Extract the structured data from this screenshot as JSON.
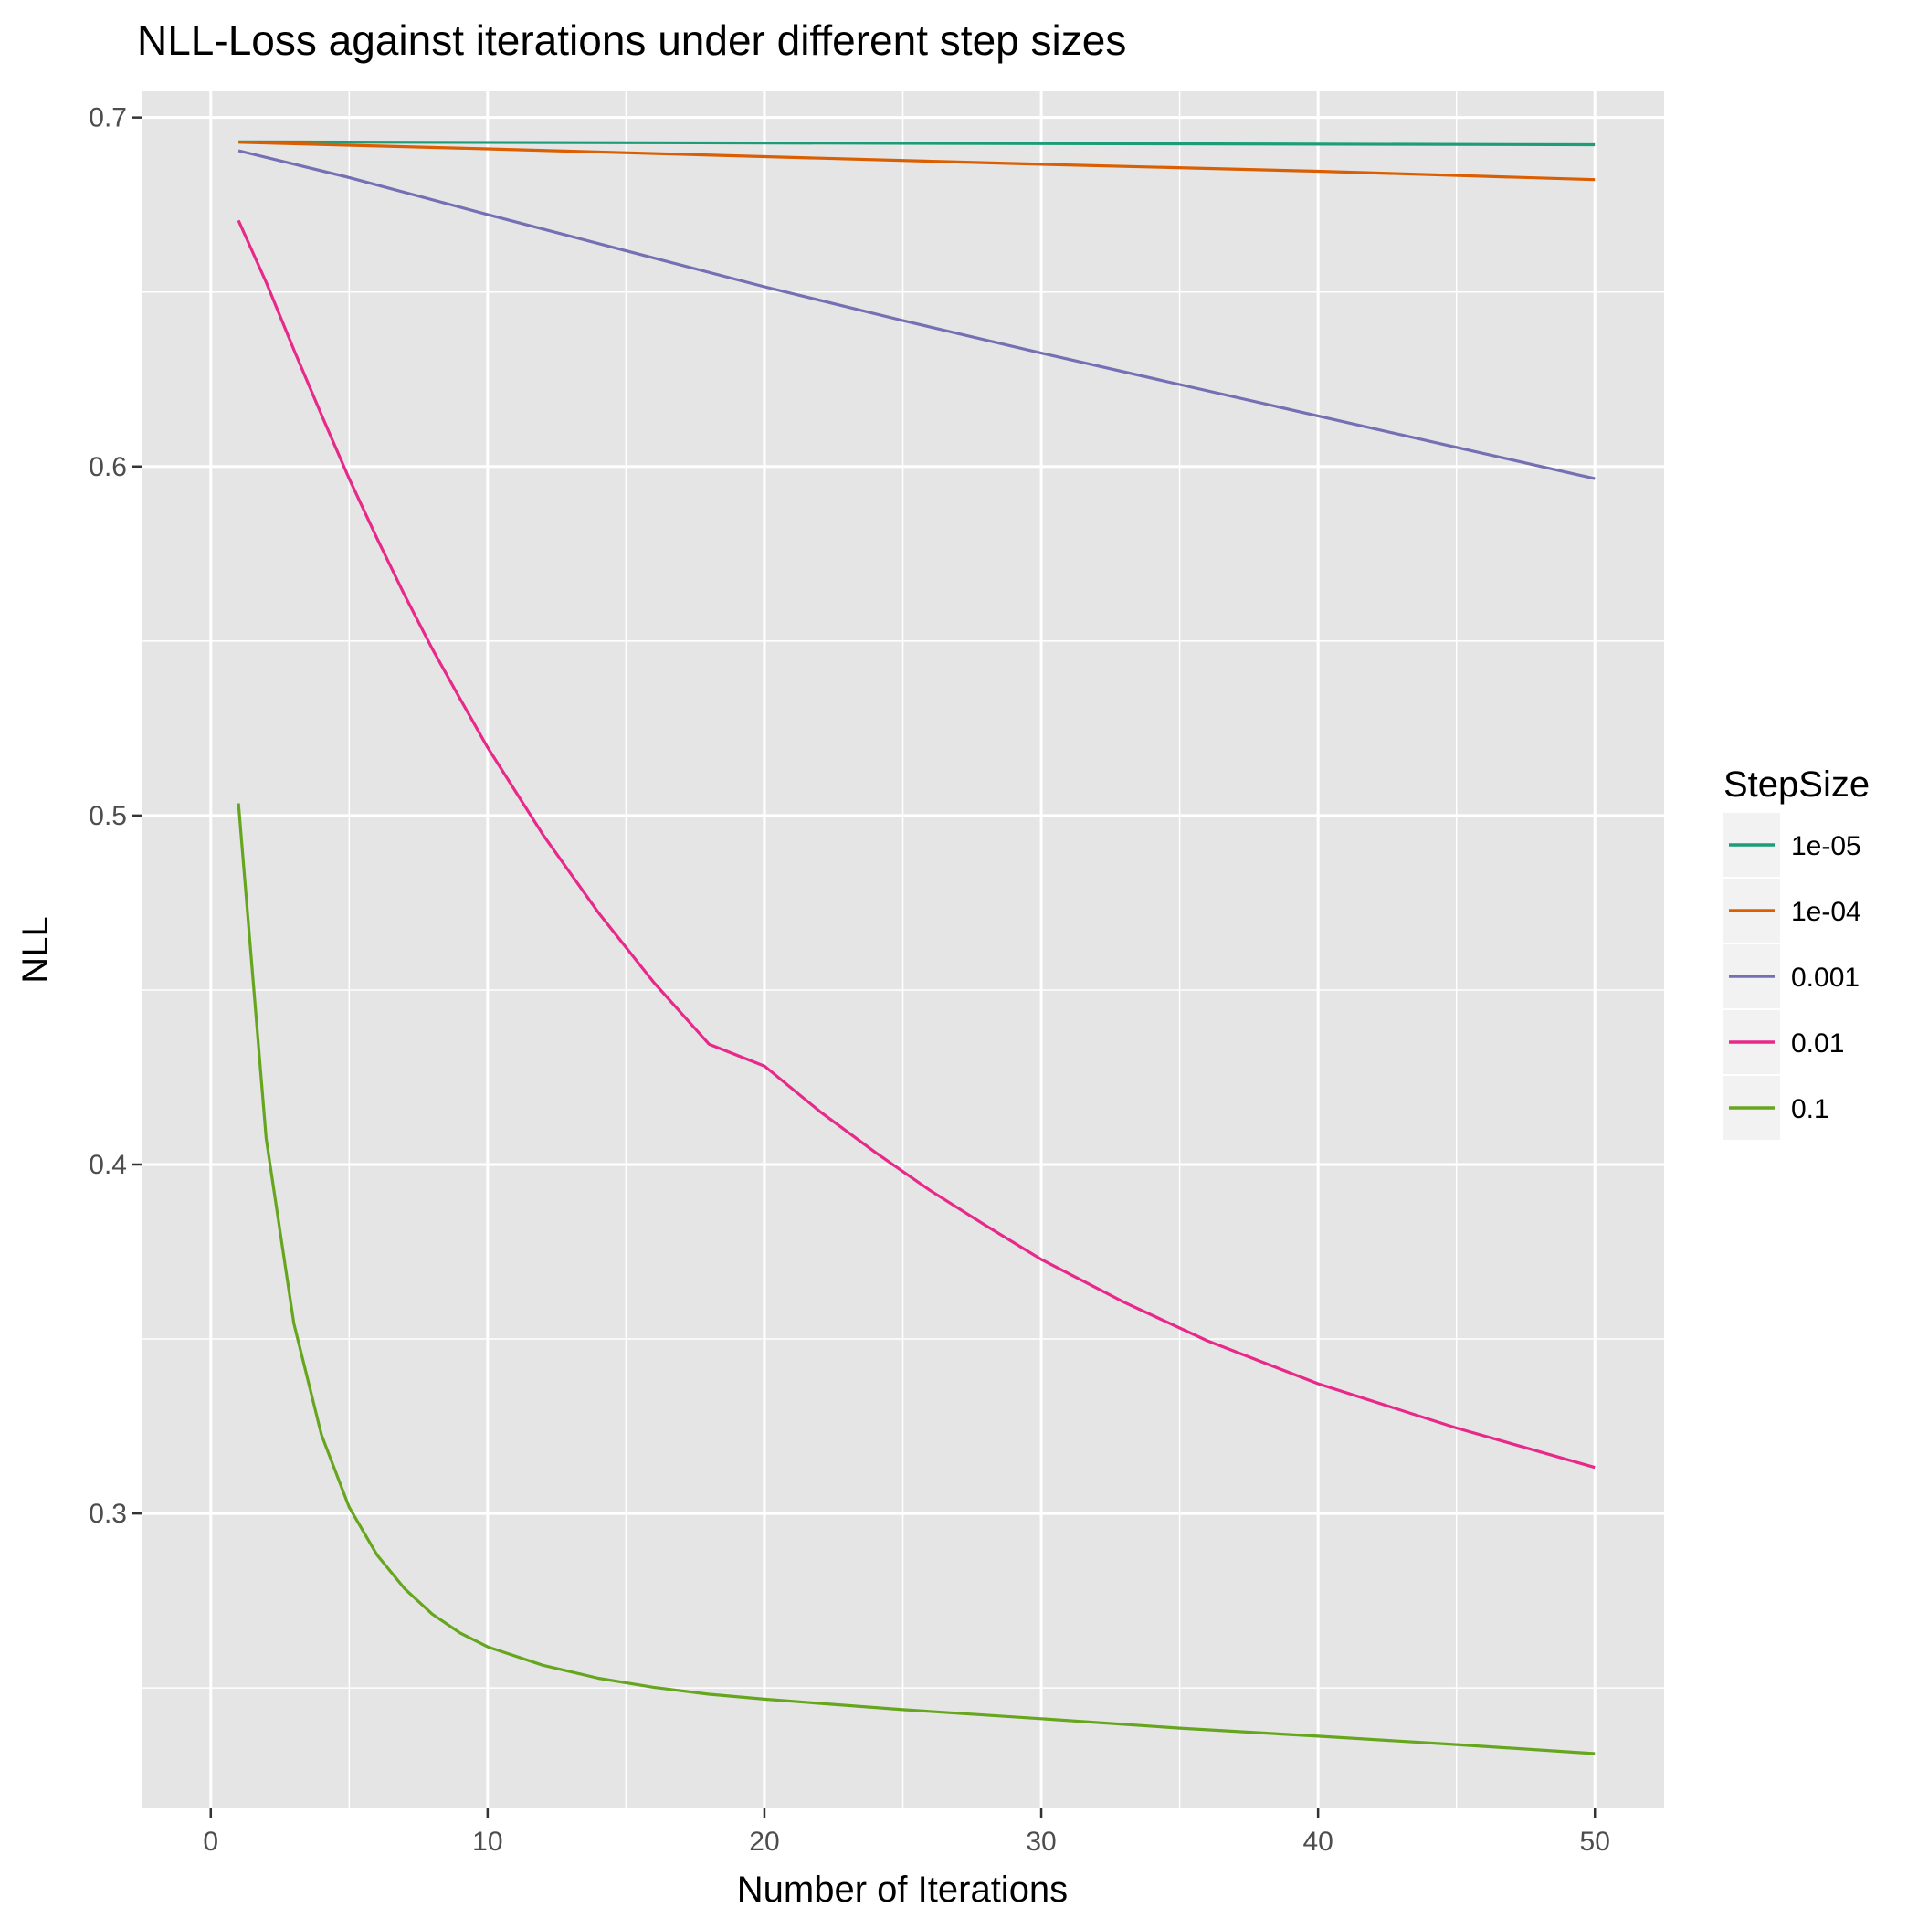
{
  "chart_data": {
    "type": "line",
    "title": "NLL-Loss against iterations under different step sizes",
    "xlabel": "Number of Iterations",
    "ylabel": "NLL",
    "xlim": [
      -2.5,
      52.5
    ],
    "ylim": [
      0.2155,
      0.7075
    ],
    "x_ticks": [
      0,
      10,
      20,
      30,
      40,
      50
    ],
    "y_ticks": [
      0.3,
      0.4,
      0.5,
      0.6,
      0.7
    ],
    "grid": true,
    "legend": {
      "title": "StepSize",
      "position": "right"
    },
    "colors": {
      "panel": "#e5e5e5",
      "grid": "#ffffff"
    },
    "series": [
      {
        "name": "1e-05",
        "color": "#1b9e77",
        "points": [
          [
            1,
            0.693
          ],
          [
            50,
            0.6922
          ]
        ]
      },
      {
        "name": "1e-04",
        "color": "#d95f02",
        "points": [
          [
            1,
            0.6929
          ],
          [
            10,
            0.691
          ],
          [
            20,
            0.6888
          ],
          [
            30,
            0.6866
          ],
          [
            40,
            0.6846
          ],
          [
            50,
            0.6822
          ]
        ]
      },
      {
        "name": "0.001",
        "color": "#7570b3",
        "points": [
          [
            1,
            0.6905
          ],
          [
            5,
            0.6828
          ],
          [
            10,
            0.6722
          ],
          [
            15,
            0.6618
          ],
          [
            20,
            0.6515
          ],
          [
            25,
            0.6418
          ],
          [
            30,
            0.6325
          ],
          [
            35,
            0.6235
          ],
          [
            40,
            0.6145
          ],
          [
            45,
            0.6055
          ],
          [
            50,
            0.5965
          ]
        ]
      },
      {
        "name": "0.01",
        "color": "#e7298a",
        "points": [
          [
            1,
            0.6705
          ],
          [
            2,
            0.6528
          ],
          [
            3,
            0.6335
          ],
          [
            4,
            0.6148
          ],
          [
            5,
            0.5965
          ],
          [
            6,
            0.5795
          ],
          [
            7,
            0.5632
          ],
          [
            8,
            0.5478
          ],
          [
            9,
            0.5335
          ],
          [
            10,
            0.5195
          ],
          [
            12,
            0.4945
          ],
          [
            14,
            0.4722
          ],
          [
            16,
            0.4522
          ],
          [
            18,
            0.4345
          ],
          [
            20,
            0.4282
          ],
          [
            22,
            0.4152
          ],
          [
            24,
            0.4035
          ],
          [
            26,
            0.3925
          ],
          [
            28,
            0.3825
          ],
          [
            30,
            0.3728
          ],
          [
            33,
            0.3605
          ],
          [
            36,
            0.3495
          ],
          [
            40,
            0.3372
          ],
          [
            45,
            0.3245
          ],
          [
            50,
            0.3132
          ]
        ]
      },
      {
        "name": "0.1",
        "color": "#66a61e",
        "points": [
          [
            1,
            0.5035
          ],
          [
            2,
            0.4075
          ],
          [
            3,
            0.3545
          ],
          [
            4,
            0.3225
          ],
          [
            5,
            0.3018
          ],
          [
            6,
            0.2882
          ],
          [
            7,
            0.2785
          ],
          [
            8,
            0.2712
          ],
          [
            9,
            0.2658
          ],
          [
            10,
            0.2618
          ],
          [
            12,
            0.2565
          ],
          [
            14,
            0.2528
          ],
          [
            16,
            0.2502
          ],
          [
            18,
            0.2482
          ],
          [
            20,
            0.2468
          ],
          [
            25,
            0.2438
          ],
          [
            30,
            0.2412
          ],
          [
            35,
            0.2385
          ],
          [
            40,
            0.2362
          ],
          [
            45,
            0.2338
          ],
          [
            50,
            0.2312
          ]
        ]
      }
    ]
  }
}
